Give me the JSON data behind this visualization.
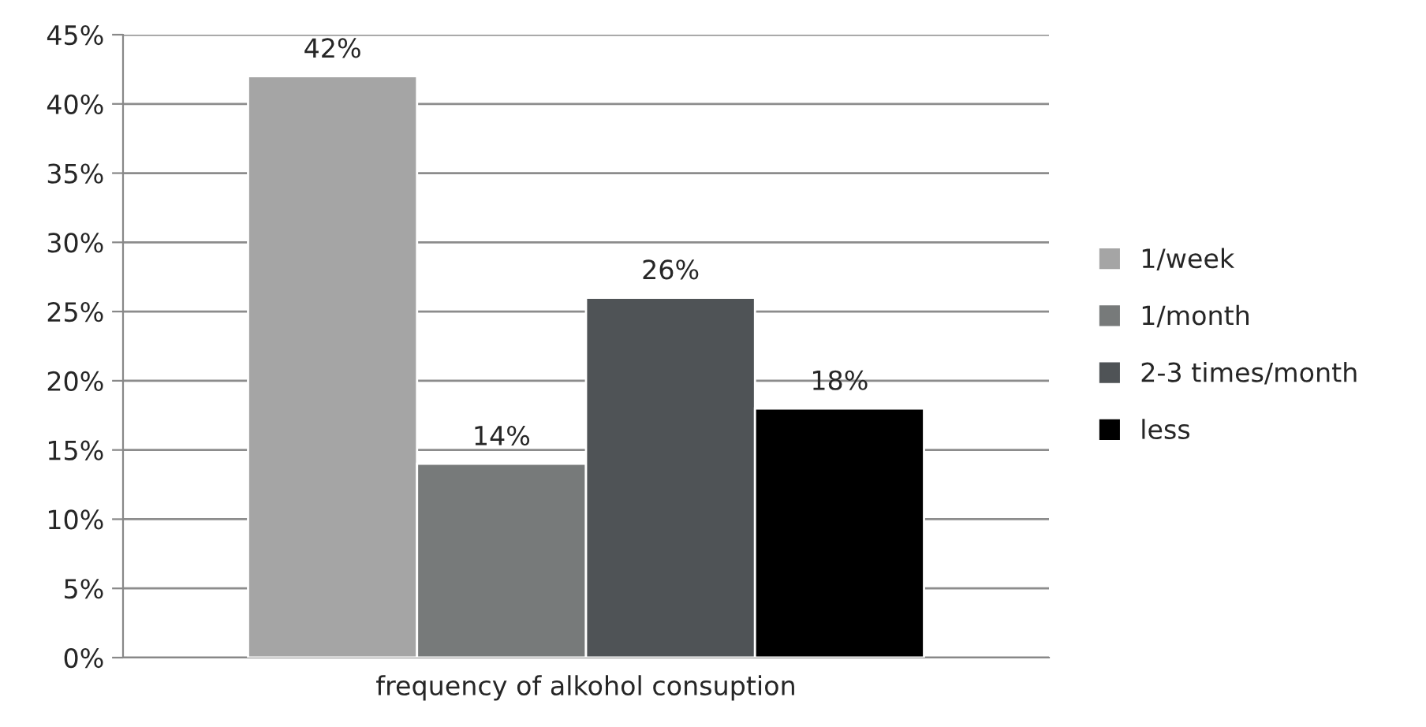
{
  "chart_data": {
    "type": "bar",
    "categories": [
      "frequency of alkohol consuption"
    ],
    "series": [
      {
        "name": "1/week",
        "color": "#a5a5a5",
        "values": [
          42
        ],
        "value_labels": [
          "42%"
        ]
      },
      {
        "name": "1/month",
        "color": "#777a7a",
        "values": [
          14
        ],
        "value_labels": [
          "14%"
        ]
      },
      {
        "name": "2-3 times/month",
        "color": "#4f5356",
        "values": [
          26
        ],
        "value_labels": [
          "26%"
        ]
      },
      {
        "name": "less",
        "color": "#000000",
        "values": [
          18
        ],
        "value_labels": [
          "18%"
        ]
      }
    ],
    "ylim": [
      0,
      45
    ],
    "yticks": [
      {
        "value": 0,
        "label": "0%"
      },
      {
        "value": 5,
        "label": "5%"
      },
      {
        "value": 10,
        "label": "10%"
      },
      {
        "value": 15,
        "label": "15%"
      },
      {
        "value": 20,
        "label": "20%"
      },
      {
        "value": 25,
        "label": "25%"
      },
      {
        "value": 30,
        "label": "30%"
      },
      {
        "value": 35,
        "label": "35%"
      },
      {
        "value": 40,
        "label": "40%"
      },
      {
        "value": 45,
        "label": "45%"
      }
    ],
    "grid": "y",
    "legend": "right"
  }
}
